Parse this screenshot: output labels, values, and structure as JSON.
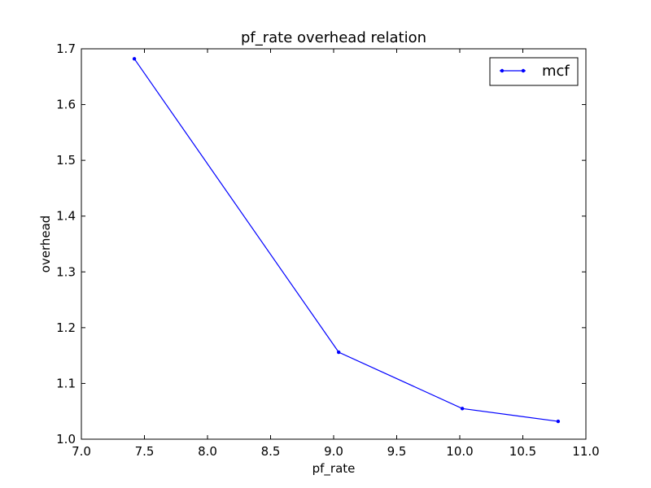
{
  "chart_data": {
    "type": "line",
    "title": "pf_rate overhead relation",
    "xlabel": "pf_rate",
    "ylabel": "overhead",
    "xlim": [
      7.0,
      11.0
    ],
    "ylim": [
      1.0,
      1.7
    ],
    "xticks": [
      "7.0",
      "7.5",
      "8.0",
      "8.5",
      "9.0",
      "9.5",
      "10.0",
      "10.5",
      "11.0"
    ],
    "yticks": [
      "1.0",
      "1.1",
      "1.2",
      "1.3",
      "1.4",
      "1.5",
      "1.6",
      "1.7"
    ],
    "grid": false,
    "legend_position": "upper right",
    "series": [
      {
        "name": "mcf",
        "color": "#0000ff",
        "marker": "dot",
        "x": [
          7.42,
          9.04,
          10.02,
          10.78
        ],
        "y": [
          1.682,
          1.156,
          1.055,
          1.032
        ]
      }
    ]
  }
}
